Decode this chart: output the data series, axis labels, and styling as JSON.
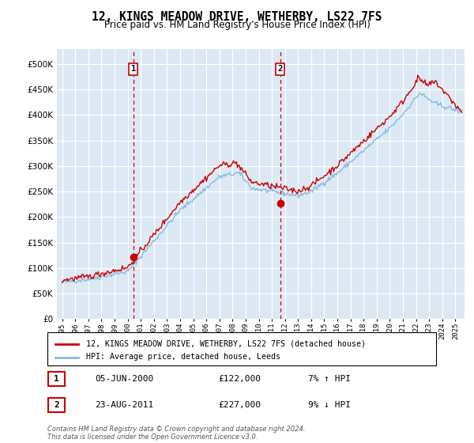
{
  "title": "12, KINGS MEADOW DRIVE, WETHERBY, LS22 7FS",
  "subtitle": "Price paid vs. HM Land Registry's House Price Index (HPI)",
  "title_fontsize": 10.5,
  "subtitle_fontsize": 8.5,
  "ytick_values": [
    0,
    50000,
    100000,
    150000,
    200000,
    250000,
    300000,
    350000,
    400000,
    450000,
    500000
  ],
  "ylim": [
    0,
    530000
  ],
  "xlim_start": 1994.6,
  "xlim_end": 2025.7,
  "background_color": "#dce9f5",
  "grid_color": "#ffffff",
  "red_line_color": "#cc0000",
  "blue_line_color": "#88bbdd",
  "dashed_line_color": "#cc0000",
  "purchase1_x": 2000.43,
  "purchase1_y": 122000,
  "purchase1_label": "1",
  "purchase1_date": "05-JUN-2000",
  "purchase1_price": "£122,000",
  "purchase1_hpi": "7% ↑ HPI",
  "purchase2_x": 2011.64,
  "purchase2_y": 227000,
  "purchase2_label": "2",
  "purchase2_date": "23-AUG-2011",
  "purchase2_price": "£227,000",
  "purchase2_hpi": "9% ↓ HPI",
  "legend_house": "12, KINGS MEADOW DRIVE, WETHERBY, LS22 7FS (detached house)",
  "legend_hpi": "HPI: Average price, detached house, Leeds",
  "footer": "Contains HM Land Registry data © Crown copyright and database right 2024.\nThis data is licensed under the Open Government Licence v3.0.",
  "xtick_years": [
    1995,
    1996,
    1997,
    1998,
    1999,
    2000,
    2001,
    2002,
    2003,
    2004,
    2005,
    2006,
    2007,
    2008,
    2009,
    2010,
    2011,
    2012,
    2013,
    2014,
    2015,
    2016,
    2017,
    2018,
    2019,
    2020,
    2021,
    2022,
    2023,
    2024,
    2025
  ]
}
